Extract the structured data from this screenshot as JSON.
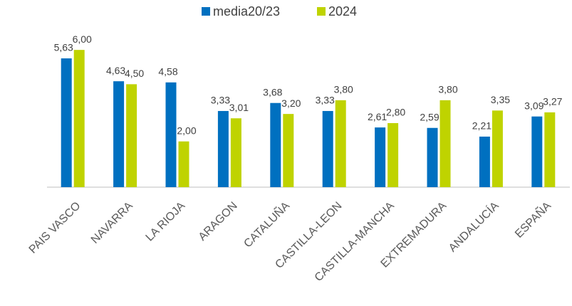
{
  "chart_data": {
    "type": "bar",
    "categories": [
      "PAIS VASCO",
      "NAVARRA",
      "LA RIOJA",
      "ARAGON",
      "CATALUÑA",
      "CASTILLA-LEON",
      "CASTILLA-MANCHA",
      "EXTREMADURA",
      "ANDALUCÍA",
      "ESPAÑA"
    ],
    "series": [
      {
        "name": "media20/23",
        "color": "#0070c0",
        "values": [
          5.63,
          4.63,
          4.58,
          3.33,
          3.68,
          3.33,
          2.61,
          2.59,
          2.21,
          3.09
        ],
        "value_labels": [
          "5,63",
          "4,63",
          "4,58",
          "3,33",
          "3,68",
          "3,33",
          "2,61",
          "2,59",
          "2,21",
          "3,09"
        ]
      },
      {
        "name": "2024",
        "color": "#bfd300",
        "values": [
          6.0,
          4.5,
          2.0,
          3.01,
          3.2,
          3.8,
          2.8,
          3.8,
          3.35,
          3.27
        ],
        "value_labels": [
          "6,00",
          "4,50",
          "2,00",
          "3,01",
          "3,20",
          "3,80",
          "2,80",
          "3,80",
          "3,35",
          "3,27"
        ]
      }
    ],
    "ylim": [
      0,
      7
    ],
    "legend": "top"
  }
}
